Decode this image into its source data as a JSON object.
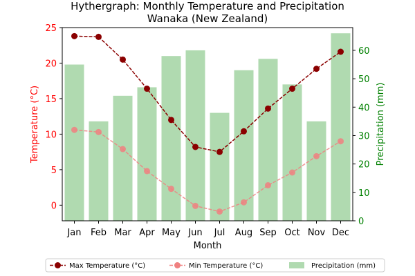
{
  "chart_data": {
    "type": "bar+line",
    "title_line1": "Hythergraph: Monthly Temperature and Precipitation",
    "title_line2": "Wanaka (New Zealand)",
    "xlabel": "Month",
    "ylabel_left": "Temperature (°C)",
    "ylabel_right": "Precipitation (mm)",
    "categories": [
      "Jan",
      "Feb",
      "Mar",
      "Apr",
      "May",
      "Jun",
      "Jul",
      "Aug",
      "Sep",
      "Oct",
      "Nov",
      "Dec"
    ],
    "ylim_left": [
      -2.2,
      25
    ],
    "ylim_right": [
      0,
      68
    ],
    "yticks_left": [
      0,
      5,
      10,
      15,
      20,
      25
    ],
    "yticks_right": [
      0,
      10,
      20,
      30,
      40,
      50,
      60
    ],
    "series": [
      {
        "name": "Max Temperature (°C)",
        "axis": "left",
        "kind": "line",
        "style": "dashed",
        "color": "#8b0000",
        "values": [
          23.8,
          23.7,
          20.5,
          16.4,
          12.0,
          8.2,
          7.5,
          10.4,
          13.6,
          16.4,
          19.2,
          21.6
        ]
      },
      {
        "name": "Min Temperature (°C)",
        "axis": "left",
        "kind": "line",
        "style": "dashed",
        "color": "#f08080",
        "values": [
          10.6,
          10.3,
          7.9,
          4.8,
          2.3,
          -0.1,
          -0.9,
          0.4,
          2.8,
          4.6,
          6.9,
          9.0
        ]
      },
      {
        "name": "Precipitation (mm)",
        "axis": "right",
        "kind": "bar",
        "color": "#8fca8f",
        "values": [
          55,
          35,
          44,
          47,
          58,
          60,
          38,
          53,
          57,
          48,
          35,
          66
        ]
      }
    ],
    "legend": {
      "placement": "bottom-center",
      "columns": 3
    },
    "grid": false,
    "colors": {
      "left_axis": "#ff0000",
      "right_axis": "#008000",
      "bar_alpha": 0.7
    }
  }
}
